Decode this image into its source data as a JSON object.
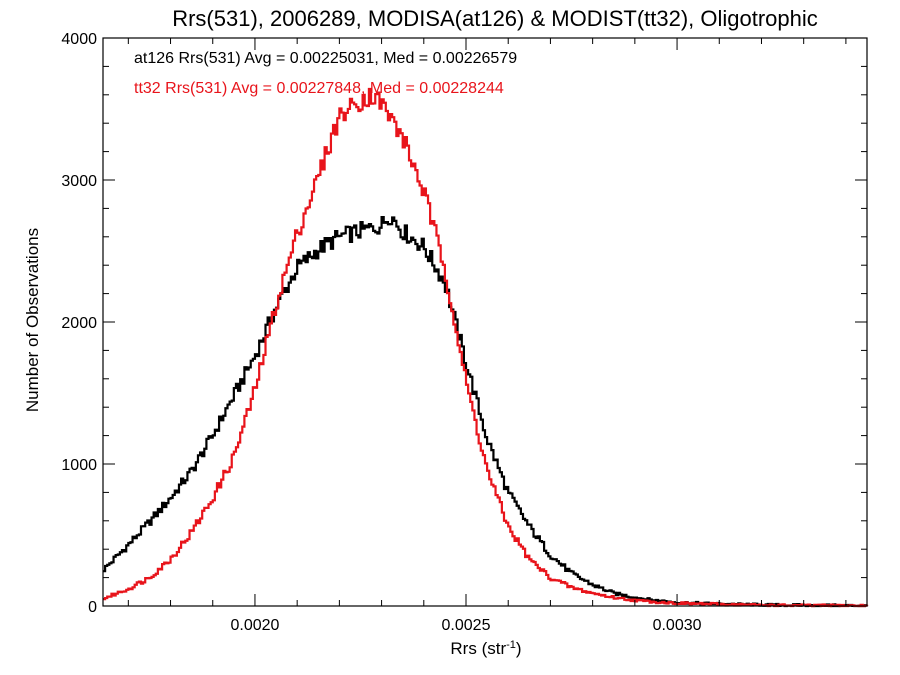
{
  "chart_data": {
    "type": "line",
    "title": "Rrs(531), 2006289, MODISA(at126) & MODIST(tt32), Oligotrophic",
    "xlabel_main": "Rrs (str",
    "xlabel_sup": "-1",
    "xlabel_close": ")",
    "ylabel": "Number of Observations",
    "xlim": [
      0.00164,
      0.00345
    ],
    "ylim": [
      0,
      4000
    ],
    "x_ticks": [
      0.002,
      0.0025,
      0.003
    ],
    "x_tick_labels": [
      "0.0020",
      "0.0025",
      "0.0030"
    ],
    "y_ticks": [
      0,
      1000,
      2000,
      3000,
      4000
    ],
    "y_tick_labels": [
      "0",
      "1000",
      "2000",
      "3000",
      "4000"
    ],
    "grid": false,
    "legend_position": "top-left",
    "series": [
      {
        "name": "at126",
        "legend": "at126 Rrs(531) Avg = 0.00225031, Med = 0.00226579",
        "color": "#000000",
        "points": [
          [
            0.00164,
            250
          ],
          [
            0.0017,
            430
          ],
          [
            0.00175,
            590
          ],
          [
            0.0018,
            760
          ],
          [
            0.00185,
            950
          ],
          [
            0.0019,
            1200
          ],
          [
            0.00195,
            1480
          ],
          [
            0.002,
            1760
          ],
          [
            0.00205,
            2100
          ],
          [
            0.0021,
            2380
          ],
          [
            0.00215,
            2510
          ],
          [
            0.0022,
            2600
          ],
          [
            0.00225,
            2640
          ],
          [
            0.0023,
            2680
          ],
          [
            0.00232,
            2760
          ],
          [
            0.00235,
            2640
          ],
          [
            0.0024,
            2530
          ],
          [
            0.00245,
            2280
          ],
          [
            0.0025,
            1720
          ],
          [
            0.00255,
            1180
          ],
          [
            0.0026,
            800
          ],
          [
            0.00265,
            560
          ],
          [
            0.0027,
            360
          ],
          [
            0.00275,
            230
          ],
          [
            0.0028,
            150
          ],
          [
            0.00285,
            90
          ],
          [
            0.0029,
            60
          ],
          [
            0.00295,
            40
          ],
          [
            0.003,
            25
          ],
          [
            0.0031,
            15
          ],
          [
            0.0032,
            8
          ],
          [
            0.0033,
            5
          ],
          [
            0.00345,
            2
          ]
        ]
      },
      {
        "name": "tt32",
        "legend": "tt32 Rrs(531) Avg = 0.00227848, Med = 0.00228244",
        "color": "#e8141b",
        "points": [
          [
            0.00164,
            50
          ],
          [
            0.0017,
            120
          ],
          [
            0.00175,
            200
          ],
          [
            0.0018,
            330
          ],
          [
            0.00185,
            520
          ],
          [
            0.0019,
            760
          ],
          [
            0.00195,
            1050
          ],
          [
            0.002,
            1520
          ],
          [
            0.00205,
            2120
          ],
          [
            0.0021,
            2620
          ],
          [
            0.00215,
            3020
          ],
          [
            0.0022,
            3450
          ],
          [
            0.00225,
            3560
          ],
          [
            0.00228,
            3600
          ],
          [
            0.0023,
            3540
          ],
          [
            0.00235,
            3300
          ],
          [
            0.0024,
            2920
          ],
          [
            0.00245,
            2380
          ],
          [
            0.0025,
            1580
          ],
          [
            0.00255,
            960
          ],
          [
            0.0026,
            560
          ],
          [
            0.00265,
            330
          ],
          [
            0.0027,
            200
          ],
          [
            0.00275,
            130
          ],
          [
            0.0028,
            90
          ],
          [
            0.00285,
            60
          ],
          [
            0.0029,
            40
          ],
          [
            0.00295,
            28
          ],
          [
            0.003,
            20
          ],
          [
            0.0031,
            12
          ],
          [
            0.0032,
            6
          ],
          [
            0.0033,
            3
          ],
          [
            0.00345,
            2
          ]
        ]
      }
    ]
  }
}
